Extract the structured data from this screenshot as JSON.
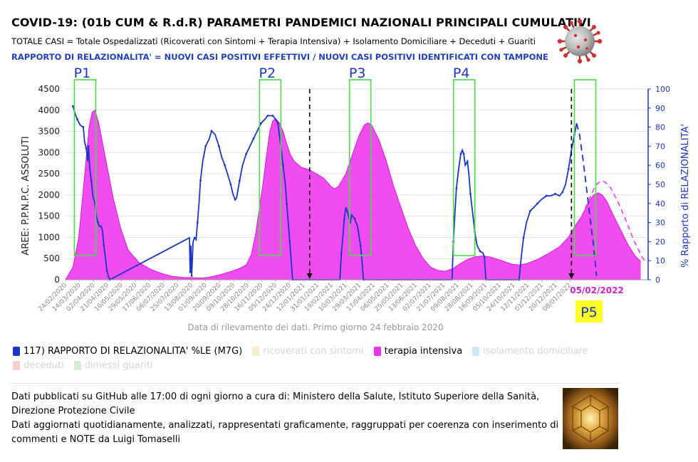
{
  "header": {
    "title": "COVID-19: (01b CUM & R.d.R) PARAMETRI PANDEMICI NAZIONALI PRINCIPALI CUMULATIVI",
    "formula": "TOTALE CASI = Totale Ospedalizzati (Ricoverati con Sintomi + Terapia Intensiva) + Isolamento Domiciliare + Deceduti + Guariti",
    "ratio_definition": "RAPPORTO DI RELAZIONALITA' = NUOVI CASI POSITIVI EFFETTIVI / NUOVI CASI POSITIVI IDENTIFICATI CON TAMPONE"
  },
  "colors": {
    "ratio_line": "#1a35c8",
    "intensive_care": "#ee33ee",
    "ricoverati": "#f5ecd0",
    "isolamento": "#cde8f7",
    "deceduti": "#f7cfcf",
    "guariti": "#d2f1cf",
    "peak_box": "#44dd44",
    "p5_label_bg": "#ffff22",
    "date_highlight": "#cc22cc"
  },
  "chart_data": {
    "type": "area",
    "title": "",
    "ylabel": "AREE: P.P.N.P.C. ASSOLUTI",
    "y2label": "% Rapporto di RELAZIONALITA'",
    "xlabel": "Data di rilevamento dei dati. Primo giorno 24 febbraio 2020",
    "ylim": [
      0,
      4500
    ],
    "y2lim": [
      0,
      100
    ],
    "yticks": [
      "0",
      "500",
      "1000",
      "1500",
      "2000",
      "2500",
      "3000",
      "3500",
      "4000",
      "4500"
    ],
    "y2ticks": [
      "0",
      "10",
      "20",
      "30",
      "40",
      "50",
      "60",
      "70",
      "80",
      "90",
      "100"
    ],
    "xticks": [
      "24/02/2020",
      "14/03/2020",
      "02/04/2020",
      "21/04/2020",
      "10/05/2020",
      "29/05/2020",
      "17/06/2020",
      "06/07/2020",
      "25/07/2020",
      "13/08/2020",
      "01/09/2020",
      "20/09/2020",
      "09/10/2020",
      "28/10/2020",
      "16/11/2020",
      "05/12/2020",
      "24/12/2020",
      "12/01/2021",
      "31/01/2021",
      "19/02/2021",
      "10/03/2021",
      "29/03/2021",
      "17/04/2021",
      "06/05/2021",
      "25/05/2021",
      "13/06/2021",
      "02/07/2021",
      "21/07/2021",
      "09/08/2021",
      "28/08/2021",
      "16/09/2021",
      "05/10/2021",
      "24/10/2021",
      "12/11/2021",
      "01/12/2021",
      "20/12/2021",
      "08/01/2022"
    ],
    "highlight_date": "05/02/2022",
    "grid": true,
    "legend_position": "bottom",
    "series": [
      {
        "name": "terapia intensiva",
        "axis": "left",
        "points": [
          [
            0,
            0
          ],
          [
            10,
            300
          ],
          [
            18,
            1000
          ],
          [
            25,
            2300
          ],
          [
            32,
            3600
          ],
          [
            36,
            3950
          ],
          [
            40,
            4000
          ],
          [
            45,
            3700
          ],
          [
            55,
            2800
          ],
          [
            65,
            1900
          ],
          [
            75,
            1200
          ],
          [
            85,
            700
          ],
          [
            100,
            400
          ],
          [
            115,
            250
          ],
          [
            130,
            150
          ],
          [
            145,
            80
          ],
          [
            160,
            55
          ],
          [
            175,
            45
          ],
          [
            185,
            40
          ],
          [
            195,
            60
          ],
          [
            210,
            120
          ],
          [
            225,
            200
          ],
          [
            235,
            260
          ],
          [
            245,
            350
          ],
          [
            252,
            600
          ],
          [
            258,
            1100
          ],
          [
            263,
            1700
          ],
          [
            268,
            2300
          ],
          [
            273,
            3000
          ],
          [
            277,
            3500
          ],
          [
            281,
            3750
          ],
          [
            285,
            3800
          ],
          [
            290,
            3700
          ],
          [
            295,
            3500
          ],
          [
            300,
            3200
          ],
          [
            305,
            2950
          ],
          [
            310,
            2800
          ],
          [
            320,
            2650
          ],
          [
            330,
            2600
          ],
          [
            340,
            2500
          ],
          [
            350,
            2400
          ],
          [
            355,
            2300
          ],
          [
            360,
            2200
          ],
          [
            365,
            2150
          ],
          [
            370,
            2200
          ],
          [
            380,
            2500
          ],
          [
            390,
            3000
          ],
          [
            398,
            3400
          ],
          [
            405,
            3650
          ],
          [
            410,
            3700
          ],
          [
            415,
            3650
          ],
          [
            425,
            3300
          ],
          [
            435,
            2800
          ],
          [
            445,
            2200
          ],
          [
            455,
            1700
          ],
          [
            465,
            1200
          ],
          [
            475,
            800
          ],
          [
            485,
            500
          ],
          [
            495,
            300
          ],
          [
            505,
            220
          ],
          [
            515,
            200
          ],
          [
            525,
            260
          ],
          [
            535,
            380
          ],
          [
            545,
            480
          ],
          [
            555,
            540
          ],
          [
            565,
            560
          ],
          [
            575,
            540
          ],
          [
            590,
            460
          ],
          [
            605,
            370
          ],
          [
            615,
            350
          ],
          [
            625,
            380
          ],
          [
            640,
            480
          ],
          [
            655,
            620
          ],
          [
            670,
            780
          ],
          [
            682,
            1000
          ],
          [
            692,
            1300
          ],
          [
            700,
            1500
          ],
          [
            707,
            1750
          ],
          [
            712,
            1900
          ],
          [
            716,
            2000
          ],
          [
            722,
            2050
          ],
          [
            728,
            2000
          ],
          [
            734,
            1850
          ],
          [
            742,
            1550
          ],
          [
            752,
            1200
          ],
          [
            762,
            850
          ],
          [
            772,
            570
          ],
          [
            780,
            430
          ]
        ],
        "forecast_from": 700
      },
      {
        "name": "terapia intensiva (stima)",
        "axis": "left",
        "dashed": true,
        "points": [
          [
            700,
            1500
          ],
          [
            707,
            1780
          ],
          [
            714,
            2050
          ],
          [
            720,
            2250
          ],
          [
            726,
            2330
          ],
          [
            732,
            2300
          ],
          [
            740,
            2150
          ],
          [
            750,
            1800
          ],
          [
            760,
            1400
          ],
          [
            770,
            950
          ],
          [
            780,
            600
          ],
          [
            785,
            450
          ]
        ]
      },
      {
        "name": "117) RAPPORTO DI RELAZIONALITA' %LE (M7G)",
        "axis": "right",
        "points": [
          [
            10,
            91
          ],
          [
            13,
            87
          ],
          [
            16,
            84
          ],
          [
            20,
            81
          ],
          [
            24,
            80
          ],
          [
            26,
            72
          ],
          [
            28,
            69
          ],
          [
            30,
            62
          ],
          [
            31,
            70
          ],
          [
            33,
            58
          ],
          [
            35,
            52
          ],
          [
            37,
            44
          ],
          [
            40,
            40
          ],
          [
            42,
            33
          ],
          [
            44,
            30
          ],
          [
            46,
            28
          ],
          [
            48,
            28
          ],
          [
            50,
            26
          ],
          [
            52,
            18
          ],
          [
            54,
            12
          ],
          [
            56,
            5
          ],
          [
            58,
            2
          ],
          [
            60,
            0
          ],
          [
            168,
            22
          ],
          [
            169,
            4
          ],
          [
            170,
            18
          ],
          [
            171,
            2
          ],
          [
            173,
            20
          ],
          [
            175,
            22
          ],
          [
            177,
            21
          ],
          [
            179,
            30
          ],
          [
            181,
            40
          ],
          [
            183,
            52
          ],
          [
            186,
            62
          ],
          [
            190,
            70
          ],
          [
            195,
            74
          ],
          [
            198,
            78
          ],
          [
            203,
            76
          ],
          [
            208,
            70
          ],
          [
            212,
            64
          ],
          [
            216,
            60
          ],
          [
            220,
            55
          ],
          [
            224,
            50
          ],
          [
            227,
            45
          ],
          [
            230,
            42
          ],
          [
            232,
            43
          ],
          [
            236,
            52
          ],
          [
            240,
            60
          ],
          [
            245,
            66
          ],
          [
            250,
            70
          ],
          [
            255,
            74
          ],
          [
            260,
            78
          ],
          [
            265,
            82
          ],
          [
            270,
            84
          ],
          [
            274,
            86
          ],
          [
            277,
            86
          ],
          [
            281,
            86
          ],
          [
            285,
            84
          ],
          [
            288,
            82
          ],
          [
            292,
            70
          ],
          [
            295,
            60
          ],
          [
            298,
            50
          ],
          [
            300,
            40
          ],
          [
            302,
            30
          ],
          [
            304,
            20
          ],
          [
            306,
            10
          ],
          [
            308,
            0
          ],
          [
            372,
            0
          ],
          [
            374,
            14
          ],
          [
            376,
            22
          ],
          [
            378,
            32
          ],
          [
            380,
            38
          ],
          [
            382,
            36
          ],
          [
            384,
            33
          ],
          [
            386,
            30
          ],
          [
            388,
            34
          ],
          [
            392,
            32
          ],
          [
            396,
            28
          ],
          [
            400,
            18
          ],
          [
            402,
            10
          ],
          [
            404,
            0
          ],
          [
            524,
            0
          ],
          [
            526,
            20
          ],
          [
            528,
            35
          ],
          [
            530,
            48
          ],
          [
            533,
            58
          ],
          [
            536,
            66
          ],
          [
            538,
            68
          ],
          [
            540,
            66
          ],
          [
            542,
            60
          ],
          [
            545,
            62
          ],
          [
            547,
            55
          ],
          [
            549,
            45
          ],
          [
            552,
            35
          ],
          [
            555,
            25
          ],
          [
            558,
            18
          ],
          [
            562,
            15
          ],
          [
            566,
            14
          ],
          [
            568,
            12
          ],
          [
            570,
            0
          ],
          [
            615,
            0
          ],
          [
            618,
            12
          ],
          [
            621,
            22
          ],
          [
            625,
            30
          ],
          [
            630,
            36
          ],
          [
            635,
            38
          ],
          [
            640,
            40
          ],
          [
            645,
            42
          ],
          [
            652,
            44
          ],
          [
            658,
            44
          ],
          [
            664,
            45
          ],
          [
            670,
            44
          ],
          [
            674,
            46
          ],
          [
            678,
            50
          ],
          [
            682,
            58
          ],
          [
            686,
            68
          ],
          [
            690,
            76
          ],
          [
            693,
            82
          ]
        ],
        "forecast_from": 693
      },
      {
        "name": "117) RAPPORTO DI RELAZIONALITA' (stima)",
        "axis": "right",
        "dashed": true,
        "points": [
          [
            693,
            82
          ],
          [
            697,
            76
          ],
          [
            702,
            62
          ],
          [
            707,
            46
          ],
          [
            712,
            30
          ],
          [
            716,
            18
          ],
          [
            720,
            2
          ]
        ]
      },
      {
        "name": "ricoverati con sintomi",
        "axis": "left",
        "hidden": true,
        "points": []
      },
      {
        "name": "isolamento domiciliare",
        "axis": "left",
        "hidden": true,
        "points": []
      },
      {
        "name": "deceduti",
        "axis": "left",
        "hidden": true,
        "points": []
      },
      {
        "name": "dimessi guariti",
        "axis": "left",
        "hidden": true,
        "points": []
      }
    ],
    "annotations": [
      {
        "label": "P1",
        "x_from": 12,
        "x_to": 41
      },
      {
        "label": "P2",
        "x_from": 263,
        "x_to": 292
      },
      {
        "label": "P3",
        "x_from": 385,
        "x_to": 414
      },
      {
        "label": "P4",
        "x_from": 526,
        "x_to": 555
      },
      {
        "label": "P5",
        "x_from": 690,
        "x_to": 719
      }
    ],
    "vertical_markers": [
      331,
      686
    ]
  },
  "legend": [
    {
      "label": "117) RAPPORTO DI RELAZIONALITA' %LE (M7G)",
      "color": "#1a35c8",
      "active": true
    },
    {
      "label": "ricoverati con sintomi",
      "color": "#f5ecd0",
      "active": false
    },
    {
      "label": "terapia intensiva",
      "color": "#ee33ee",
      "active": true
    },
    {
      "label": "isolamento domiciliare",
      "color": "#cde8f7",
      "active": false
    },
    {
      "label": "deceduti",
      "color": "#f7cfcf",
      "active": false
    },
    {
      "label": "dimessi guariti",
      "color": "#d2f1cf",
      "active": false
    }
  ],
  "credits": {
    "line1": "Dati pubblicati su GitHub alle 17:00 di ogni giorno a cura di: Ministero della Salute, Istituto Superiore della Sanità,",
    "line2": "Direzione Protezione Civile",
    "line3": "Dati aggiornati quotidianamente, analizzati, rappresentati graficamente, raggruppati per coerenza con inserimento di",
    "line4": "commenti e NOTE da Luigi Tomaselli"
  }
}
